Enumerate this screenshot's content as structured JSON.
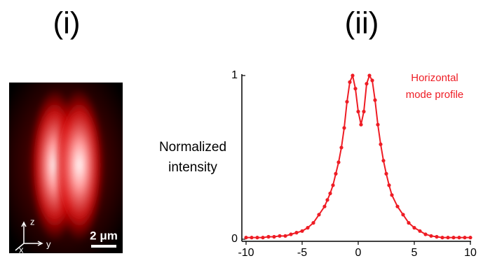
{
  "panel_labels": [
    "(i)",
    "(ii)"
  ],
  "image": {
    "axis_labels": [
      "z",
      "x",
      "y"
    ],
    "scale_bar": "2 μm"
  },
  "chart_data": {
    "type": "line",
    "ylabel": [
      "Normalized",
      "intensity"
    ],
    "annotation": [
      "Horizontal",
      "mode profile"
    ],
    "color": "#ee1c24",
    "xlim": [
      -10,
      10
    ],
    "xticks": [
      -10,
      -5,
      0,
      5,
      10
    ],
    "ylim": [
      0,
      1
    ],
    "yticks": [
      0,
      1
    ],
    "grid": false,
    "x": [
      -10,
      -9.5,
      -9,
      -8.5,
      -8,
      -7.5,
      -7,
      -6.5,
      -6,
      -5.5,
      -5,
      -4.5,
      -4,
      -3.5,
      -3,
      -2.75,
      -2.5,
      -2.25,
      -2,
      -1.75,
      -1.5,
      -1.25,
      -1,
      -0.75,
      -0.5,
      -0.25,
      0,
      0.25,
      0.5,
      0.75,
      1,
      1.25,
      1.5,
      1.75,
      2,
      2.25,
      2.5,
      2.75,
      3,
      3.5,
      4,
      4.5,
      5,
      5.5,
      6,
      6.5,
      7,
      7.5,
      8,
      8.5,
      9,
      9.5,
      10
    ],
    "values": [
      0.01,
      0.01,
      0.01,
      0.01,
      0.015,
      0.015,
      0.02,
      0.02,
      0.03,
      0.04,
      0.05,
      0.07,
      0.1,
      0.15,
      0.2,
      0.24,
      0.28,
      0.33,
      0.4,
      0.47,
      0.56,
      0.68,
      0.84,
      0.96,
      1.0,
      0.92,
      0.78,
      0.7,
      0.78,
      0.95,
      1.0,
      0.97,
      0.85,
      0.7,
      0.58,
      0.48,
      0.4,
      0.33,
      0.27,
      0.2,
      0.15,
      0.1,
      0.07,
      0.05,
      0.03,
      0.02,
      0.015,
      0.01,
      0.01,
      0.01,
      0.01,
      0.01,
      0.01
    ]
  }
}
